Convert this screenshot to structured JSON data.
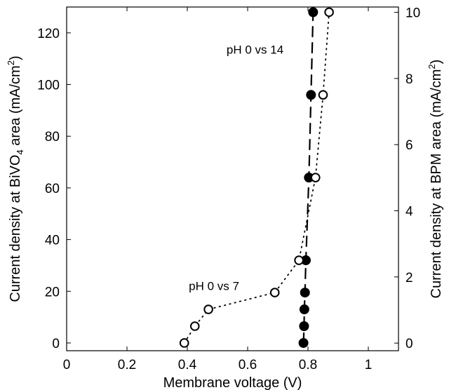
{
  "chart_data": {
    "type": "scatter",
    "xlabel": "Membrane voltage (V)",
    "ylabel_left": {
      "pre": "Current density at BiVO",
      "sub": "4",
      "mid": " area (mA/cm",
      "sup": "2",
      "post": ")"
    },
    "ylabel_right": {
      "pre": "Current density at BPM area (mA/cm",
      "sup": "2",
      "post": ")"
    },
    "xlim": [
      0,
      1.1
    ],
    "ylim_left": [
      -3,
      130
    ],
    "ylim_right": [
      -0.23,
      10.16
    ],
    "xticks": [
      0,
      0.2,
      0.4,
      0.6,
      0.8,
      1
    ],
    "xtick_labels": [
      "0",
      "0.2",
      "0.4",
      "0.6",
      "0.8",
      "1"
    ],
    "yticks_left": [
      0,
      20,
      40,
      60,
      80,
      100,
      120
    ],
    "yticks_right": [
      0,
      2,
      4,
      6,
      8,
      10
    ],
    "series": [
      {
        "name": "pH 0 vs 14",
        "marker": "filled-circle",
        "line": "dashed",
        "points": [
          {
            "x": 0.785,
            "y": 0
          },
          {
            "x": 0.787,
            "y": 6.5
          },
          {
            "x": 0.788,
            "y": 13
          },
          {
            "x": 0.79,
            "y": 19.5
          },
          {
            "x": 0.793,
            "y": 32
          },
          {
            "x": 0.803,
            "y": 64
          },
          {
            "x": 0.81,
            "y": 96
          },
          {
            "x": 0.817,
            "y": 128
          }
        ]
      },
      {
        "name": "pH 0 vs 7",
        "marker": "open-circle",
        "line": "dotted",
        "points": [
          {
            "x": 0.39,
            "y": 0
          },
          {
            "x": 0.425,
            "y": 6.5
          },
          {
            "x": 0.47,
            "y": 13
          },
          {
            "x": 0.69,
            "y": 19.5
          },
          {
            "x": 0.77,
            "y": 32
          },
          {
            "x": 0.825,
            "y": 64
          },
          {
            "x": 0.85,
            "y": 96
          },
          {
            "x": 0.87,
            "y": 128
          }
        ]
      }
    ],
    "annotations": [
      {
        "text": "pH 0 vs 14",
        "x": 0.53,
        "y": 112
      },
      {
        "text": "pH 0 vs 7",
        "x": 0.405,
        "y": 20.5
      }
    ],
    "colors": {
      "marker": "#000000",
      "axis": "#000000",
      "background": "#ffffff"
    },
    "grid": false,
    "legend": "none"
  }
}
